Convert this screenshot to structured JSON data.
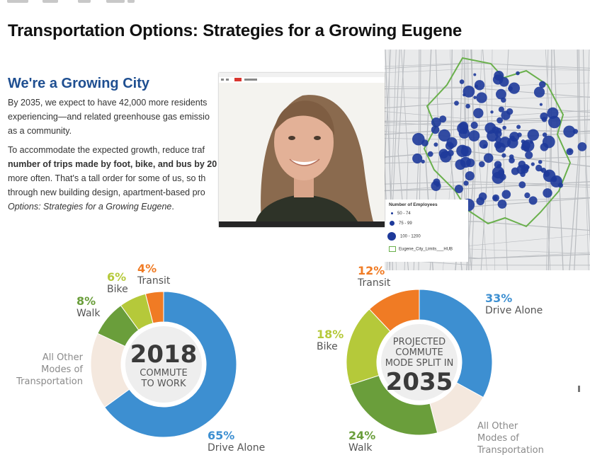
{
  "page": {
    "title": "Transportation Options: Strategies for a Growing Eugene",
    "section_title": "We're a Growing City",
    "p1_lines": [
      "By 2035, we expect to have 42,000 more residents",
      "experiencing—and related greenhouse gas emissio",
      "as a community."
    ],
    "p2_l1": "To accommodate the expected growth, reduce traf",
    "p2_l2": "number of trips made by foot, bike, and bus by 20",
    "p2_l3": "more often. That's a tall order for some of us, so th",
    "p2_l4": "through new building design, apartment-based pro",
    "p2_l5_italic": "Options: Strategies for a Growing Eugene",
    "p2_l5_end": "."
  },
  "map": {
    "legend_title": "Number of Employees",
    "legend_rows": [
      "50 - 74",
      "75 - 99",
      "100 - 1200"
    ],
    "legend_boundary": "Eugene_City_Limits___HUB",
    "dot_color": "#1e3a9a",
    "boundary_color": "#6ab04c"
  },
  "video": {
    "toolbar_badge": "REC"
  },
  "colors": {
    "drive_alone": "#3d8fd1",
    "other": "#f4e8de",
    "walk": "#6a9e3b",
    "bike": "#b5c93a",
    "transit": "#f07b24"
  },
  "chart_data": [
    {
      "type": "pie",
      "center_year": "2018",
      "center_caption": [
        "COMMUTE",
        "TO WORK"
      ],
      "categories": [
        "Drive Alone",
        "All Other Modes of Transportation",
        "Walk",
        "Bike",
        "Transit"
      ],
      "values": [
        65,
        17,
        8,
        6,
        4
      ],
      "labels": {
        "drive": {
          "pct": "65%",
          "name": "Drive Alone"
        },
        "other": [
          "All Other",
          "Modes of",
          "Transportation"
        ],
        "walk": {
          "pct": "8%",
          "name": "Walk"
        },
        "bike": {
          "pct": "6%",
          "name": "Bike"
        },
        "transit": {
          "pct": "4%",
          "name": "Transit"
        }
      }
    },
    {
      "type": "pie",
      "center_year": "2035",
      "center_caption": [
        "PROJECTED",
        "COMMUTE",
        "MODE SPLIT IN"
      ],
      "categories": [
        "Drive Alone",
        "All Other Modes of Transportation",
        "Walk",
        "Bike",
        "Transit"
      ],
      "values": [
        33,
        13,
        24,
        18,
        12
      ],
      "labels": {
        "drive": {
          "pct": "33%",
          "name": "Drive Alone"
        },
        "other": [
          "All Other",
          "Modes of",
          "Transportation"
        ],
        "walk": {
          "pct": "24%",
          "name": "Walk"
        },
        "bike": {
          "pct": "18%",
          "name": "Bike"
        },
        "transit": {
          "pct": "12%",
          "name": "Transit"
        }
      }
    }
  ]
}
